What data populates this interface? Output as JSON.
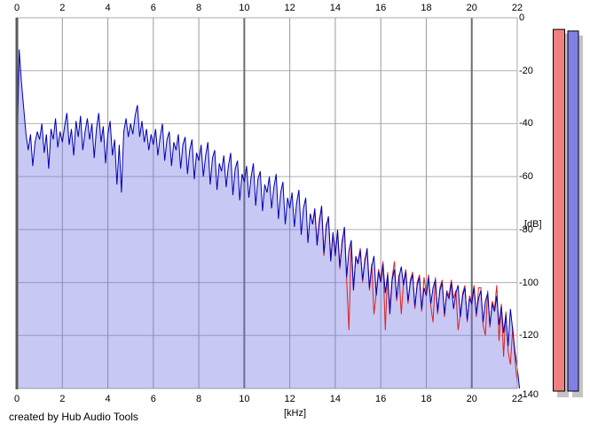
{
  "footer": {
    "text": "created by Hub Audio Tools"
  },
  "chart_data": {
    "type": "area",
    "title": "",
    "xlabel": "[kHz]",
    "ylabel": "[dB]",
    "xlim": [
      0,
      22
    ],
    "ylim": [
      -140,
      0
    ],
    "x_ticks": [
      0,
      2,
      4,
      6,
      8,
      10,
      12,
      14,
      16,
      18,
      20,
      22
    ],
    "y_ticks": [
      0,
      -20,
      -40,
      -60,
      -80,
      -100,
      -120,
      -140
    ],
    "grid": true,
    "legend": "none",
    "style": {
      "h_grid_color": "#b0b0b0",
      "v_grid_color": "#9a9a9a",
      "v_grid_major_color": "#6e6e6e",
      "border_left_color": "#5a5a5a",
      "border_light_color": "#a8a8a8",
      "border_bottom_color": "#9a9a9a",
      "area_fill": "rgba(110,110,225,0.38)"
    },
    "series": [
      {
        "name": "peak-trace-red",
        "color": "#dd2222",
        "x_start": 13.0,
        "x_step": 0.1,
        "values": [
          -78,
          -73,
          -85,
          -76,
          -72,
          -90,
          -78,
          -76,
          -91,
          -82,
          -89,
          -81,
          -95,
          -84,
          -80,
          -99,
          -118,
          -85,
          -102,
          -91,
          -92,
          -87,
          -100,
          -91,
          -88,
          -103,
          -93,
          -112,
          -104,
          -95,
          -99,
          -92,
          -118,
          -96,
          -110,
          -98,
          -92,
          -107,
          -97,
          -112,
          -100,
          -95,
          -108,
          -99,
          -96,
          -110,
          -100,
          -97,
          -111,
          -98,
          -104,
          -97,
          -109,
          -115,
          -98,
          -112,
          -102,
          -99,
          -113,
          -103,
          -105,
          -99,
          -106,
          -103,
          -118,
          -112,
          -104,
          -101,
          -115,
          -105,
          -107,
          -101,
          -113,
          -102,
          -102,
          -116,
          -120,
          -103,
          -117,
          -107,
          -110,
          -101,
          -122,
          -108,
          -128,
          -111,
          -126,
          -131,
          -117,
          -129,
          -138
        ]
      },
      {
        "name": "spectrum-trace-blue",
        "color": "#0000b4",
        "x_start": 0.0,
        "x_step": 0.1,
        "filled": true,
        "values": [
          -58,
          -12,
          -24,
          -34,
          -44,
          -50,
          -44,
          -56,
          -47,
          -43,
          -46,
          -40,
          -51,
          -44,
          -57,
          -42,
          -46,
          -38,
          -49,
          -43,
          -47,
          -41,
          -36,
          -48,
          -42,
          -52,
          -39,
          -45,
          -37,
          -50,
          -43,
          -38,
          -46,
          -40,
          -53,
          -42,
          -36,
          -47,
          -41,
          -55,
          -44,
          -39,
          -52,
          -46,
          -63,
          -48,
          -66,
          -43,
          -38,
          -45,
          -40,
          -44,
          -37,
          -33,
          -45,
          -39,
          -47,
          -42,
          -50,
          -44,
          -48,
          -42,
          -52,
          -45,
          -40,
          -54,
          -46,
          -43,
          -56,
          -47,
          -50,
          -44,
          -57,
          -48,
          -45,
          -59,
          -50,
          -46,
          -61,
          -51,
          -54,
          -48,
          -60,
          -52,
          -47,
          -63,
          -53,
          -50,
          -65,
          -55,
          -58,
          -52,
          -64,
          -56,
          -51,
          -67,
          -57,
          -54,
          -69,
          -59,
          -62,
          -56,
          -68,
          -60,
          -55,
          -71,
          -61,
          -58,
          -73,
          -63,
          -66,
          -60,
          -72,
          -64,
          -59,
          -76,
          -66,
          -62,
          -78,
          -68,
          -72,
          -66,
          -79,
          -70,
          -65,
          -82,
          -72,
          -68,
          -85,
          -74,
          -78,
          -72,
          -86,
          -77,
          -71,
          -89,
          -79,
          -75,
          -92,
          -81,
          -90,
          -80,
          -94,
          -85,
          -79,
          -98,
          -88,
          -84,
          -103,
          -90,
          -93,
          -88,
          -99,
          -92,
          -87,
          -102,
          -94,
          -90,
          -105,
          -96,
          -100,
          -93,
          -104,
          -97,
          -112,
          -99,
          -95,
          -106,
          -98,
          -94,
          -101,
          -96,
          -107,
          -100,
          -97,
          -109,
          -101,
          -98,
          -110,
          -102,
          -105,
          -98,
          -108,
          -102,
          -99,
          -111,
          -103,
          -100,
          -112,
          -104,
          -106,
          -100,
          -110,
          -104,
          -101,
          -113,
          -105,
          -102,
          -114,
          -106,
          -108,
          -102,
          -112,
          -106,
          -103,
          -115,
          -107,
          -104,
          -116,
          -108,
          -111,
          -105,
          -116,
          -109,
          -119,
          -112,
          -124,
          -110,
          -118,
          -126,
          -132,
          -140
        ]
      }
    ],
    "meters": {
      "shadow_color": "#c4c4c4",
      "outline_color": "#000000",
      "left": {
        "name": "level-meter-left",
        "color": "#f08080",
        "level_db": -4.4
      },
      "right": {
        "name": "level-meter-right",
        "color": "#8080e8",
        "level_db": -5.0
      }
    }
  }
}
